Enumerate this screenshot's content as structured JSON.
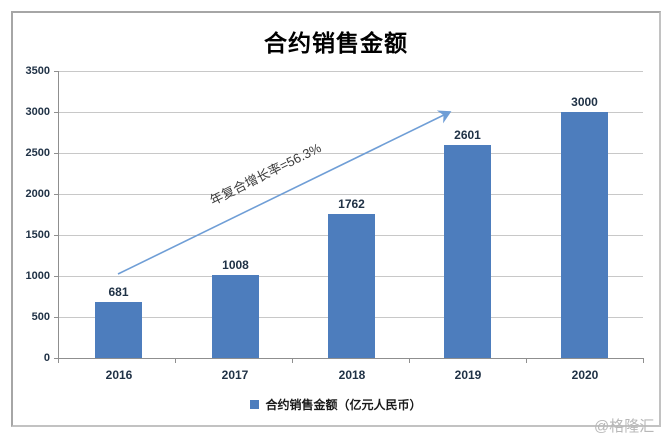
{
  "watermark": "@格隆汇",
  "chart_data": {
    "type": "bar",
    "title": "合约销售金额",
    "categories": [
      "2016",
      "2017",
      "2018",
      "2019",
      "2020"
    ],
    "values": [
      681,
      1008,
      1762,
      2601,
      3000
    ],
    "value_labels": [
      "681",
      "1008",
      "1762",
      "2601",
      "3000"
    ],
    "ytick_labels": [
      "3500",
      "3000",
      "2500",
      "2000",
      "1500",
      "1000",
      "500",
      "0"
    ],
    "ylim": [
      0,
      3500
    ],
    "xlabel": "",
    "ylabel": "",
    "grid": true,
    "annotation": "年复合增长率=56.3%",
    "legend": {
      "label": "合约销售金额（亿元人民币）",
      "position": "bottom"
    },
    "colors": {
      "bar": "#4d7dbd",
      "arrow": "#6f9ed6",
      "grid": "#c8c8c8",
      "axis": "#8f8f8f",
      "label": "#203246",
      "title": "#000000",
      "watermark": "#b8b8b8"
    }
  }
}
